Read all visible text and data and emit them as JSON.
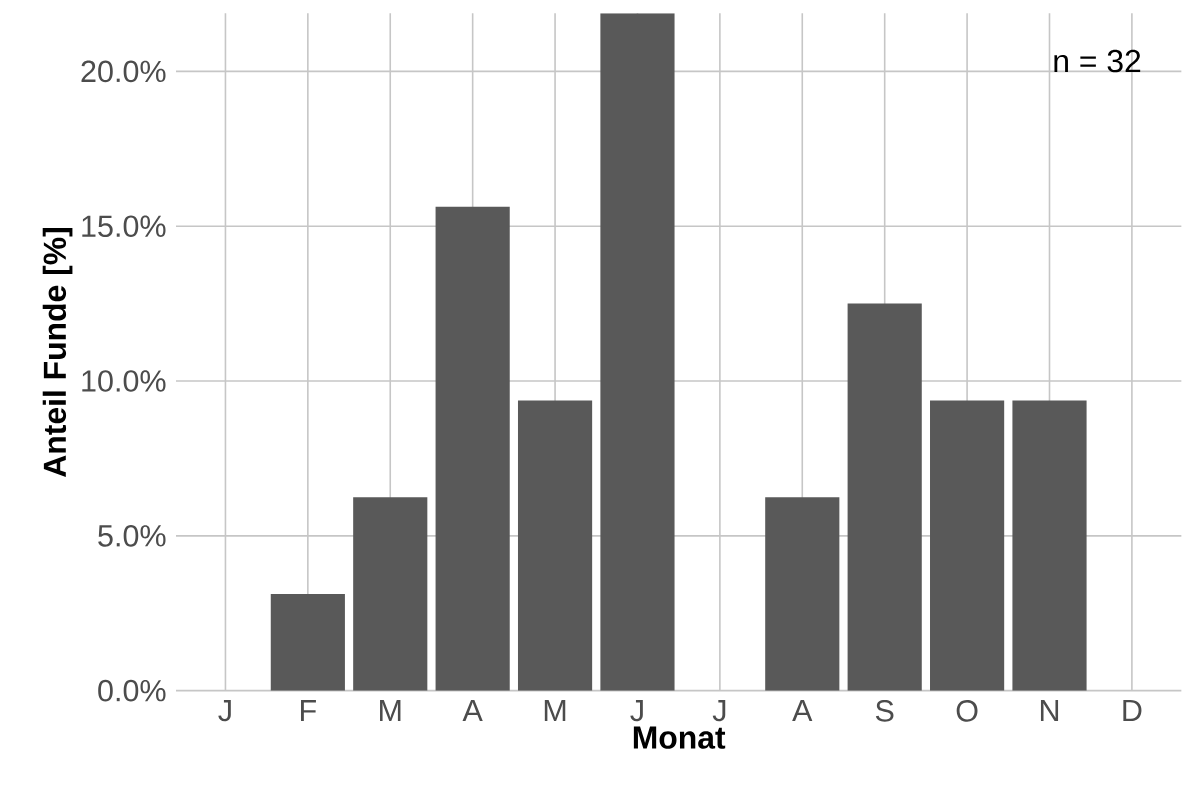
{
  "chart_data": {
    "type": "bar",
    "xlabel": "Monat",
    "ylabel": "Anteil Funde [%]",
    "categories": [
      "J",
      "F",
      "M",
      "A",
      "M",
      "J",
      "J",
      "A",
      "S",
      "O",
      "N",
      "D"
    ],
    "values": [
      0,
      3.125,
      6.25,
      15.625,
      9.375,
      21.875,
      0,
      6.25,
      12.5,
      9.375,
      9.375,
      0
    ],
    "color": "#595959",
    "ylim": [
      0,
      21.875
    ],
    "yticks": [
      {
        "value": 0,
        "label": "0.0%"
      },
      {
        "value": 5,
        "label": "5.0%"
      },
      {
        "value": 10,
        "label": "10.0%"
      },
      {
        "value": 15,
        "label": "15.0%"
      },
      {
        "value": 20,
        "label": "20.0%"
      }
    ],
    "grid": true,
    "annotations": [
      "n = 32"
    ]
  }
}
